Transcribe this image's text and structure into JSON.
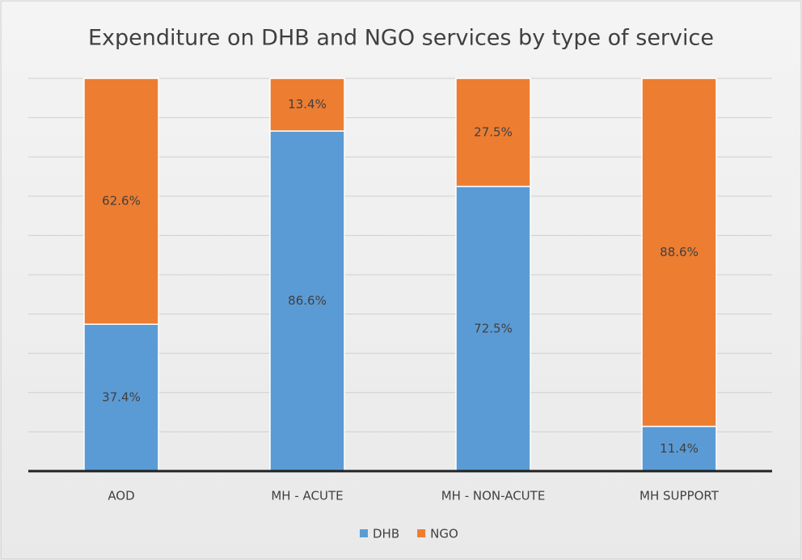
{
  "chart_data": {
    "type": "stacked_bar",
    "title": "Expenditure on DHB and NGO services by type of service",
    "categories": [
      "AOD",
      "MH - ACUTE",
      "MH - NON-ACUTE",
      "MH SUPPORT"
    ],
    "series": [
      {
        "name": "DHB",
        "color": "#5b9bd5",
        "values": [
          37.4,
          86.6,
          72.5,
          11.4
        ],
        "value_labels": [
          "37.4%",
          "86.6%",
          "72.5%",
          "11.4%"
        ]
      },
      {
        "name": "NGO",
        "color": "#ed7d31",
        "values": [
          62.6,
          13.4,
          27.5,
          88.6
        ],
        "value_labels": [
          "62.6%",
          "13.4%",
          "27.5%",
          "88.6%"
        ]
      }
    ],
    "ylim": [
      0,
      100
    ],
    "yticks": [
      0,
      10,
      20,
      30,
      40,
      50,
      60,
      70,
      80,
      90,
      100
    ],
    "grid": true,
    "legend": "bottom"
  }
}
